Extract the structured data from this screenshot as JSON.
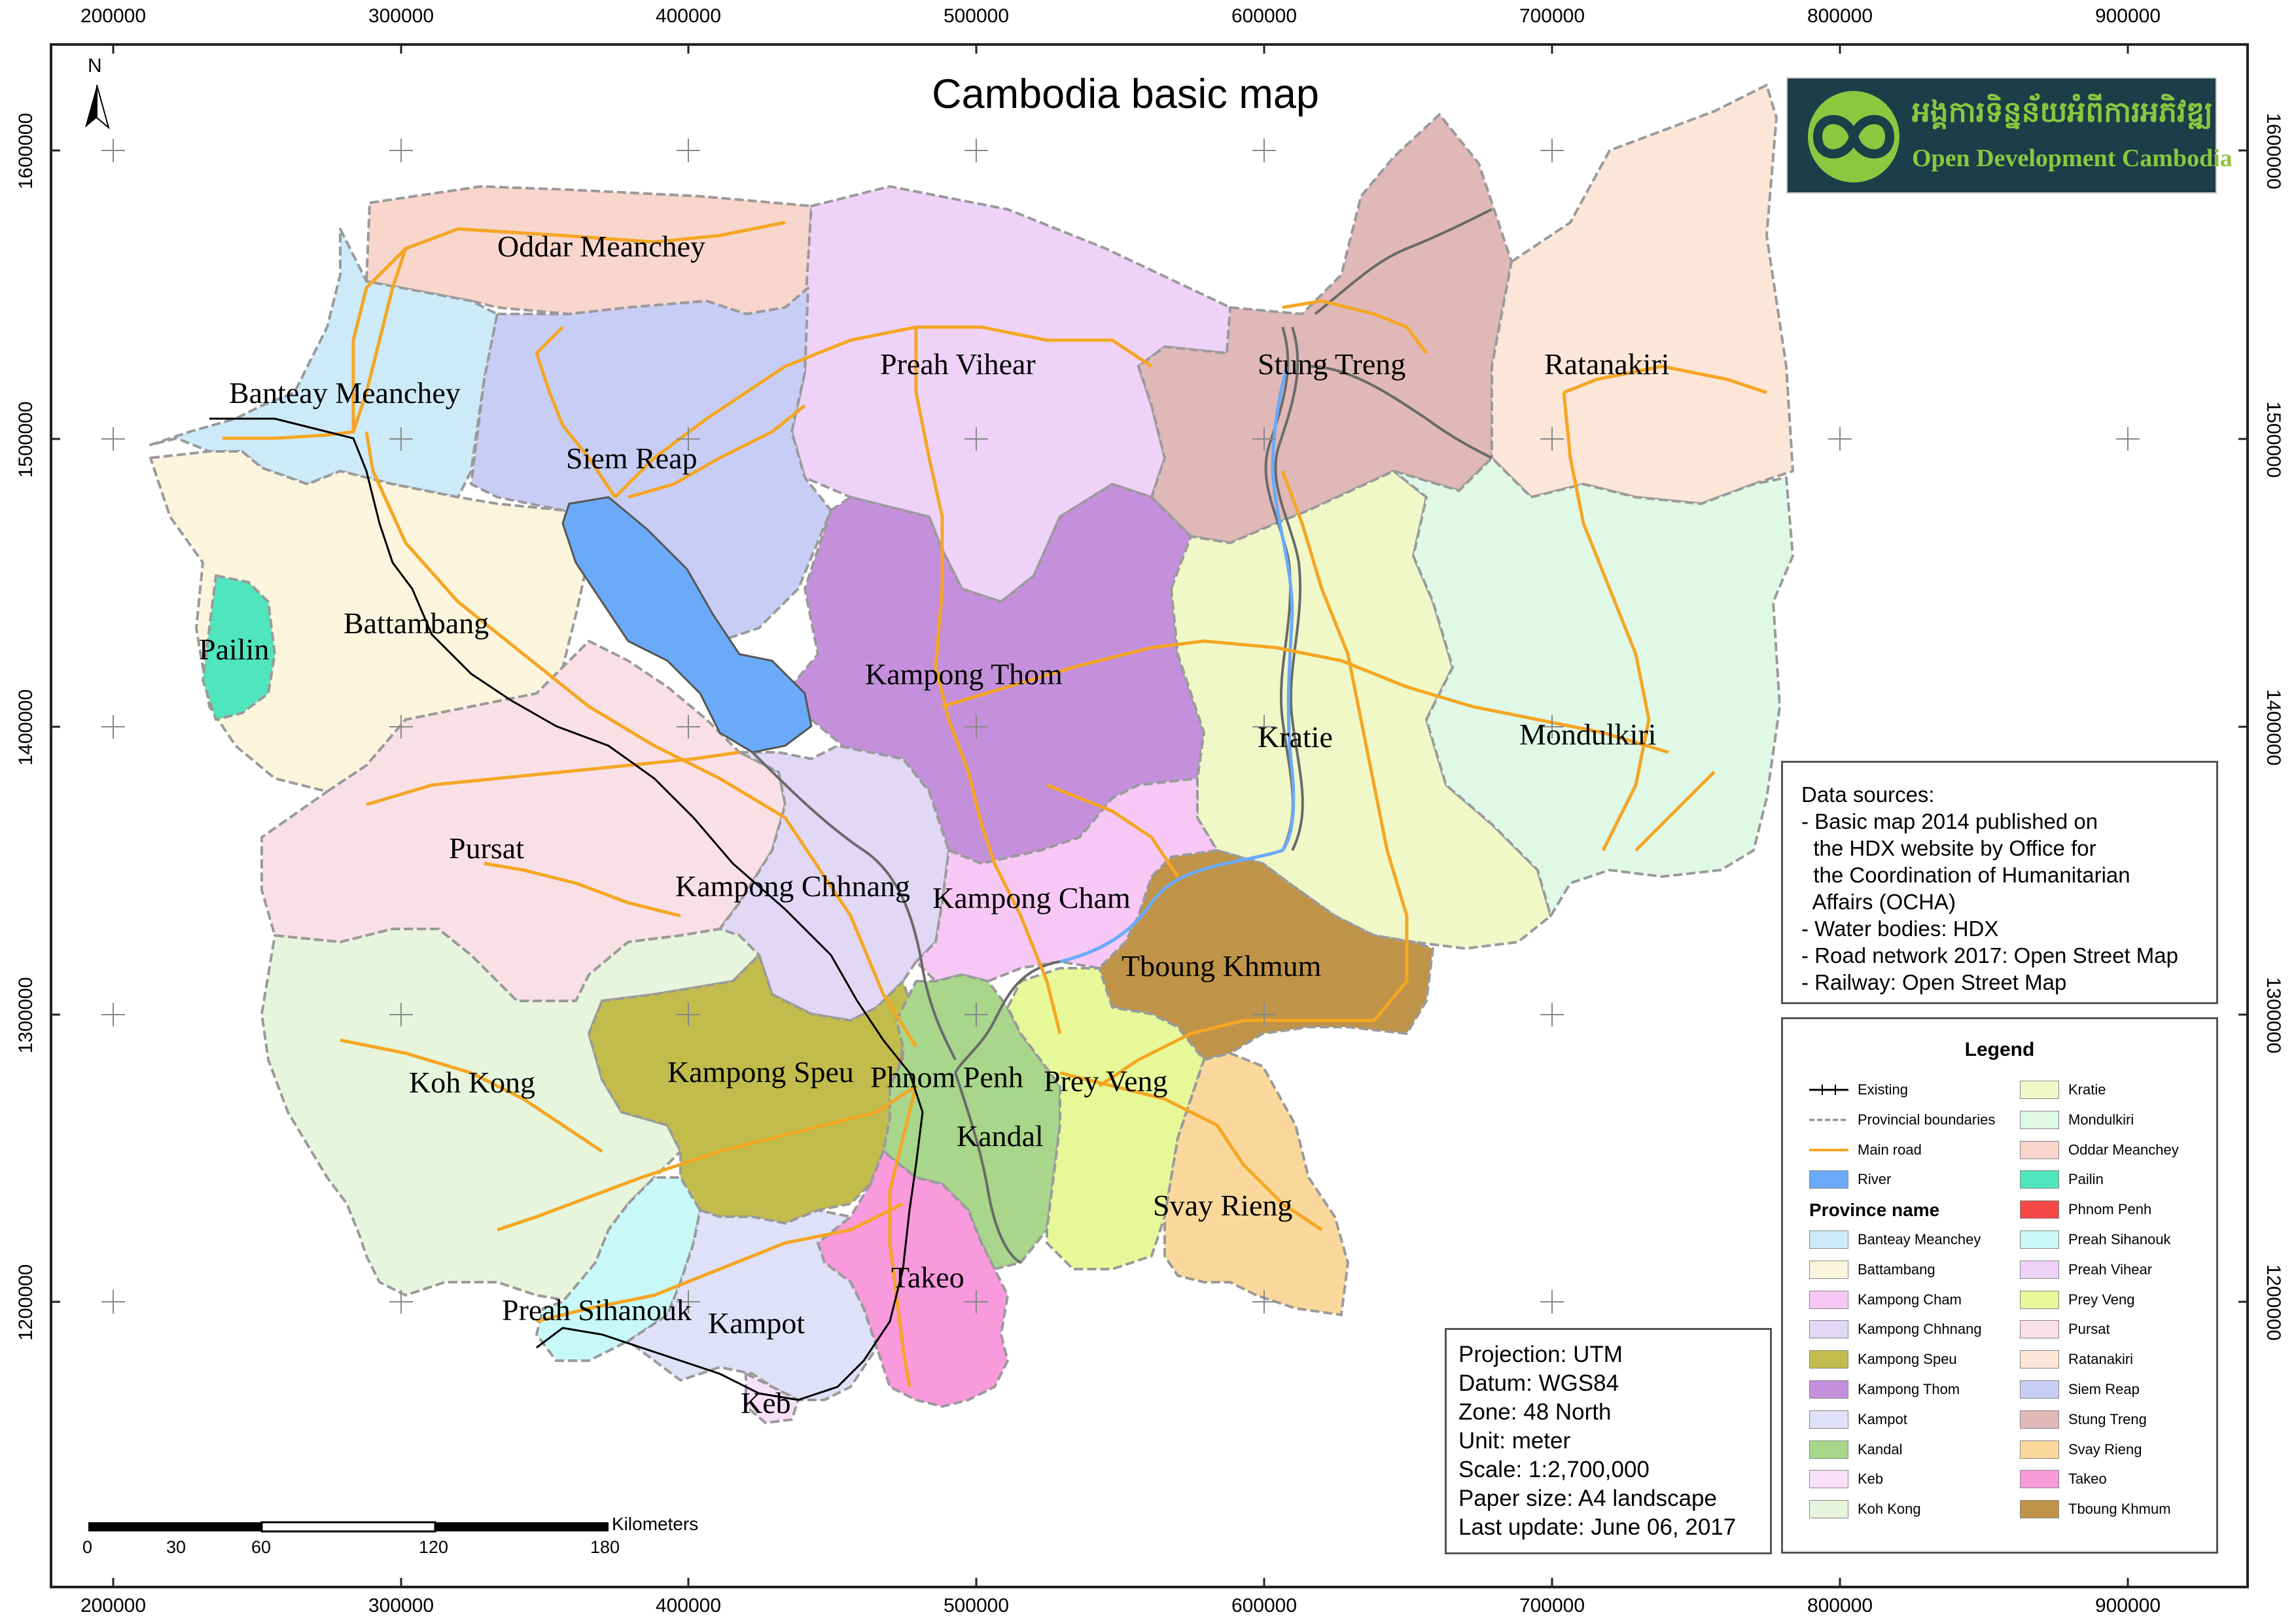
{
  "title": "Cambodia basic map",
  "north_arrow_label": "N",
  "coordinates": {
    "x_ticks": [
      "200000",
      "300000",
      "400000",
      "500000",
      "600000",
      "700000",
      "800000",
      "900000"
    ],
    "y_ticks": [
      "1600000",
      "1500000",
      "1400000",
      "1300000",
      "1200000"
    ]
  },
  "logo": {
    "khmer_text": "អង្គការទិន្នន័យអំពីការអភិវឌ្ឍ",
    "english_text": "Open Development Cambodia",
    "background": "#1d3d48",
    "accent": "#8dc63f"
  },
  "provinces": [
    {
      "name": "Oddar Meanchey",
      "color": "#f8d6cc"
    },
    {
      "name": "Preah Vihear",
      "color": "#eed2f8"
    },
    {
      "name": "Stung Treng",
      "color": "#e0b8b8"
    },
    {
      "name": "Ratanakiri",
      "color": "#fbe6d8"
    },
    {
      "name": "Banteay Meanchey",
      "color": "#cdeaf8"
    },
    {
      "name": "Siem Reap",
      "color": "#c8cdf5"
    },
    {
      "name": "Battambang",
      "color": "#fbf5dd"
    },
    {
      "name": "Pailin",
      "color": "#4fe6bd"
    },
    {
      "name": "Kampong Thom",
      "color": "#c490dc"
    },
    {
      "name": "Kratie",
      "color": "#f0f8c8"
    },
    {
      "name": "Mondulkiri",
      "color": "#e0f8e6"
    },
    {
      "name": "Pursat",
      "color": "#f9e0e6"
    },
    {
      "name": "Kampong Chhnang",
      "color": "#e0d8f5"
    },
    {
      "name": "Kampong Cham",
      "color": "#f7c8f5"
    },
    {
      "name": "Tboung Khmum",
      "color": "#c09448"
    },
    {
      "name": "Koh Kong",
      "color": "#e6f5dc"
    },
    {
      "name": "Kampong Speu",
      "color": "#c2bc4c"
    },
    {
      "name": "Phnom Penh",
      "color": "#f54848"
    },
    {
      "name": "Kandal",
      "color": "#a8d68a"
    },
    {
      "name": "Prey Veng",
      "color": "#e6f898"
    },
    {
      "name": "Svay Rieng",
      "color": "#fad89c"
    },
    {
      "name": "Takeo",
      "color": "#f89adc"
    },
    {
      "name": "Preah Sihanouk",
      "color": "#c8f8f8"
    },
    {
      "name": "Kampot",
      "color": "#e0e0f8"
    },
    {
      "name": "Keb",
      "color": "#f8e0f8"
    }
  ],
  "colors": {
    "river": "#6aaaf8",
    "main_road": "#f5a623",
    "railway": "#000000",
    "river_line": "#6a6a6a"
  },
  "data_sources": {
    "lines": [
      "Data sources:",
      "- Basic map 2014 published on",
      "  the HDX website by Office for",
      "  the Coordination of Humanitarian",
      "  Affairs (OCHA)",
      "- Water bodies: HDX",
      "- Road network 2017: Open Street Map",
      "- Railway: Open Street Map"
    ]
  },
  "legend": {
    "title": "Legend",
    "existing": "Existing",
    "provincial_boundaries": "Provincial boundaries",
    "main_road": "Main road",
    "river": "River",
    "province_name_heading": "Province name",
    "col1_provinces": [
      "Banteay Meanchey",
      "Battambang",
      "Kampong Cham",
      "Kampong Chhnang",
      "Kampong Speu",
      "Kampong Thom",
      "Kampot",
      "Kandal",
      "Keb",
      "Koh Kong"
    ],
    "col2_provinces": [
      "Kratie",
      "Mondulkiri",
      "Oddar Meanchey",
      "Pailin",
      "Phnom Penh",
      "Preah Sihanouk",
      "Preah Vihear",
      "Prey Veng",
      "Pursat",
      "Ratanakiri",
      "Siem Reap",
      "Stung Treng",
      "Svay Rieng",
      "Takeo",
      "Tboung Khmum"
    ]
  },
  "projection": {
    "lines": [
      "Projection: UTM",
      "Datum: WGS84",
      "Zone: 48 North",
      "Unit: meter",
      "Scale: 1:2,700,000",
      "Paper size: A4 landscape",
      "Last update: June 06, 2017"
    ]
  },
  "scale_bar": {
    "unit": "Kilometers",
    "labels": [
      "0",
      "30",
      "60",
      "120",
      "180"
    ]
  }
}
